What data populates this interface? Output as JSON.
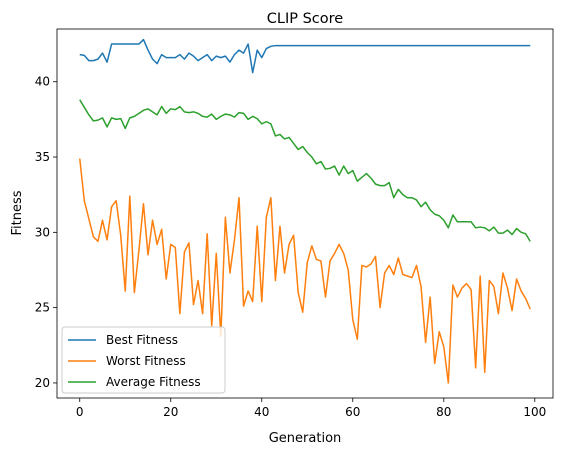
{
  "chart_data": {
    "type": "line",
    "title": "CLIP Score",
    "xlabel": "Generation",
    "ylabel": "Fitness",
    "xlim": [
      -5,
      104
    ],
    "ylim": [
      19,
      43.5
    ],
    "xticks": [
      0,
      20,
      40,
      60,
      80,
      100
    ],
    "yticks": [
      20,
      25,
      30,
      35,
      40
    ],
    "grid": false,
    "legend_position": "lower-left",
    "series": [
      {
        "name": "Best Fitness",
        "color": "#1f77b4",
        "values": [
          41.8,
          41.75,
          41.4,
          41.4,
          41.5,
          41.9,
          41.3,
          42.5,
          42.5,
          42.5,
          42.5,
          42.5,
          42.5,
          42.5,
          42.8,
          42.1,
          41.5,
          41.2,
          41.8,
          41.6,
          41.6,
          41.6,
          41.8,
          41.5,
          41.9,
          41.7,
          41.4,
          41.6,
          41.8,
          41.4,
          41.7,
          41.6,
          41.7,
          41.3,
          41.8,
          42.1,
          41.9,
          42.5,
          40.6,
          42.1,
          41.6,
          42.2,
          42.35,
          42.4,
          42.4,
          42.4,
          42.4,
          42.4,
          42.4,
          42.4,
          42.4,
          42.4,
          42.4,
          42.4,
          42.4,
          42.4,
          42.4,
          42.4,
          42.4,
          42.4,
          42.4,
          42.4,
          42.4,
          42.4,
          42.4,
          42.4,
          42.4,
          42.4,
          42.4,
          42.4,
          42.4,
          42.4,
          42.4,
          42.4,
          42.4,
          42.4,
          42.4,
          42.4,
          42.4,
          42.4,
          42.4,
          42.4,
          42.4,
          42.4,
          42.4,
          42.4,
          42.4,
          42.4,
          42.4,
          42.4,
          42.4,
          42.4,
          42.4,
          42.4,
          42.4,
          42.4,
          42.4,
          42.4,
          42.4,
          42.4
        ]
      },
      {
        "name": "Worst Fitness",
        "color": "#ff7f0e",
        "values": [
          34.9,
          32.1,
          30.9,
          29.7,
          29.4,
          30.8,
          29.5,
          31.7,
          32.1,
          29.8,
          26.1,
          32.4,
          26.0,
          28.8,
          31.9,
          28.5,
          30.8,
          29.2,
          30.2,
          26.9,
          29.2,
          29.0,
          24.6,
          28.7,
          29.3,
          25.2,
          26.8,
          24.6,
          29.9,
          23.8,
          28.6,
          23.1,
          31.0,
          27.3,
          29.5,
          32.3,
          25.1,
          26.1,
          25.4,
          30.4,
          25.4,
          31.0,
          32.3,
          26.8,
          30.4,
          27.3,
          29.2,
          29.8,
          26.0,
          24.7,
          28.0,
          29.1,
          28.2,
          28.1,
          25.7,
          28.1,
          28.6,
          29.2,
          28.6,
          27.5,
          24.2,
          22.9,
          27.8,
          27.7,
          27.9,
          28.4,
          25.0,
          27.3,
          27.8,
          27.2,
          28.3,
          27.2,
          27.1,
          27.0,
          27.8,
          26.4,
          22.7,
          25.7,
          21.3,
          23.4,
          22.4,
          20.0,
          26.5,
          25.7,
          26.3,
          26.6,
          26.2,
          21.0,
          27.1,
          20.7,
          26.8,
          26.4,
          24.6,
          27.3,
          26.3,
          24.8,
          26.9,
          26.1,
          25.6,
          24.9
        ]
      },
      {
        "name": "Average Fitness",
        "color": "#2ca02c",
        "values": [
          38.8,
          38.3,
          37.8,
          37.4,
          37.45,
          37.6,
          37.0,
          37.6,
          37.5,
          37.55,
          36.9,
          37.6,
          37.7,
          37.9,
          38.1,
          38.2,
          38.0,
          37.8,
          38.35,
          37.9,
          38.2,
          38.15,
          38.35,
          38.0,
          37.95,
          38.0,
          37.9,
          37.7,
          37.65,
          37.85,
          37.5,
          37.7,
          37.85,
          37.8,
          37.65,
          37.95,
          37.9,
          37.5,
          37.7,
          37.55,
          37.2,
          37.35,
          37.2,
          36.4,
          36.5,
          36.2,
          36.3,
          35.9,
          35.5,
          35.7,
          35.3,
          35.0,
          34.55,
          34.7,
          34.2,
          34.25,
          34.4,
          33.8,
          34.4,
          33.9,
          34.1,
          33.4,
          33.65,
          33.9,
          33.6,
          33.2,
          33.1,
          33.1,
          33.3,
          32.3,
          32.85,
          32.5,
          32.3,
          32.3,
          32.15,
          31.7,
          32.0,
          31.5,
          31.2,
          31.1,
          30.8,
          30.3,
          31.15,
          30.7,
          30.7,
          30.7,
          30.7,
          30.3,
          30.35,
          30.3,
          30.1,
          30.35,
          29.95,
          29.95,
          30.15,
          29.85,
          30.25,
          30.0,
          29.9,
          29.4
        ]
      }
    ]
  }
}
